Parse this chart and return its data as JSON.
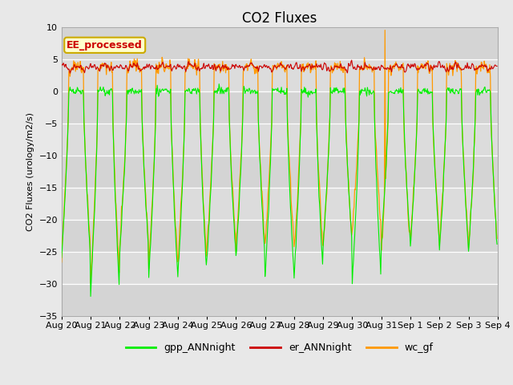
{
  "title": "CO2 Fluxes",
  "ylabel": "CO2 Fluxes (urology/m2/s)",
  "ylim": [
    -35,
    10
  ],
  "yticks": [
    10,
    5,
    0,
    -5,
    -10,
    -15,
    -20,
    -25,
    -30,
    -35
  ],
  "n_days": 15,
  "points_per_day": 48,
  "xlabels": [
    "Aug 20",
    "Aug 21",
    "Aug 22",
    "Aug 23",
    "Aug 24",
    "Aug 25",
    "Aug 26",
    "Aug 27",
    "Aug 28",
    "Aug 29",
    "Aug 30",
    "Aug 31",
    "Sep 1",
    "Sep 2",
    "Sep 3",
    "Sep 4"
  ],
  "gpp_color": "#00ee00",
  "er_color": "#cc0000",
  "wc_color": "#ff9900",
  "bg_color": "#e8e8e8",
  "plot_bg": "#d8d8d8",
  "plot_bg_inner": "#e0e0e0",
  "legend_box_label": "EE_processed",
  "legend_box_bg": "#ffffcc",
  "legend_box_edge": "#ccaa00",
  "legend_box_text_color": "#cc0000",
  "legend_labels": [
    "gpp_ANNnight",
    "er_ANNnight",
    "wc_gf"
  ],
  "title_fontsize": 12,
  "axis_fontsize": 8,
  "gpp_depths": [
    26,
    32,
    25,
    29,
    29,
    26,
    26,
    29,
    29,
    24,
    30,
    24,
    24,
    25,
    25
  ],
  "wc_depths": [
    25,
    30,
    24,
    27,
    27,
    24,
    24,
    24,
    25,
    24,
    22,
    25,
    23,
    24,
    25
  ],
  "wc_spike_day": 11,
  "wc_spike_value": 9.5
}
